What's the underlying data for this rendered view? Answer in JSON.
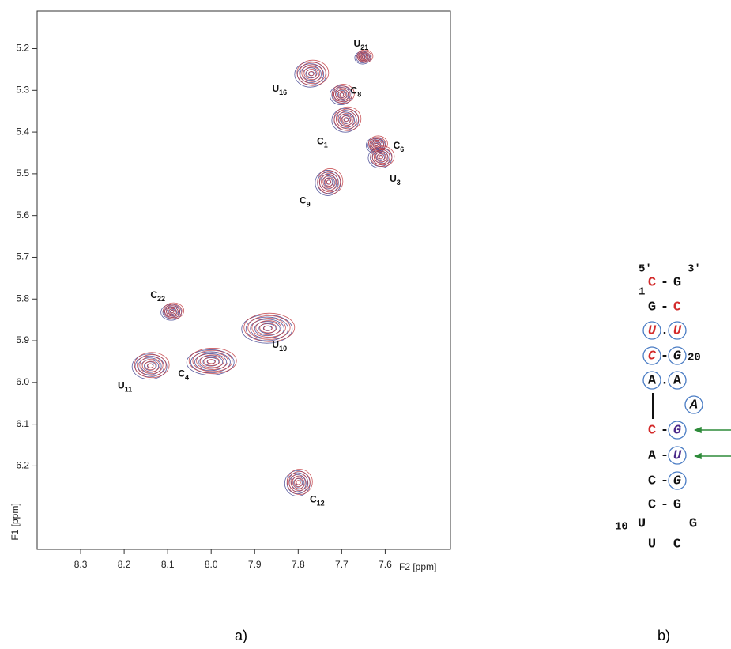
{
  "chart_data": {
    "type": "contour",
    "x_label": "F2 [ppm]",
    "y_label": "F1 [ppm]",
    "panel_label": "a)",
    "xlim": [
      8.4,
      7.45
    ],
    "ylim": [
      5.11,
      6.4
    ],
    "xticks": [
      8.3,
      8.2,
      8.1,
      {
        "value": 8.0,
        "label": "8.0"
      },
      7.9,
      7.8,
      7.7,
      7.6
    ],
    "yticks": [
      5.2,
      5.3,
      5.4,
      5.5,
      5.6,
      5.7,
      5.8,
      5.9,
      {
        "value": 6.0,
        "label": "6.0"
      },
      6.1,
      6.2
    ],
    "contour_colors": [
      "#3d3f8e",
      "#c23b3f"
    ],
    "peaks": [
      {
        "label": "U",
        "sub": "21",
        "x": 7.65,
        "y": 5.22
      },
      {
        "label": "U",
        "sub": "16",
        "x": 7.77,
        "y": 5.26
      },
      {
        "label": "C",
        "sub": "8",
        "x": 7.7,
        "y": 5.31
      },
      {
        "label": "C",
        "sub": "1",
        "x": 7.69,
        "y": 5.37
      },
      {
        "label": "C",
        "sub": "6",
        "x": 7.62,
        "y": 5.43
      },
      {
        "label": "U",
        "sub": "3",
        "x": 7.61,
        "y": 5.46
      },
      {
        "label": "C",
        "sub": "9",
        "x": 7.73,
        "y": 5.52
      },
      {
        "label": "C",
        "sub": "22",
        "x": 8.09,
        "y": 5.83
      },
      {
        "label": "U",
        "sub": "10",
        "x": 7.87,
        "y": 5.87
      },
      {
        "label": "C",
        "sub": "4",
        "x": 8.0,
        "y": 5.95
      },
      {
        "label": "U",
        "sub": "11",
        "x": 8.14,
        "y": 5.96
      },
      {
        "label": "C",
        "sub": "12",
        "x": 7.8,
        "y": 6.24
      }
    ]
  },
  "structure": {
    "panel_label": "b)",
    "labels": [
      "5′",
      "3′",
      "1",
      "20",
      "10"
    ],
    "bonds": [
      "-",
      "-",
      ".",
      "-",
      ".",
      "-",
      "-",
      "-",
      "-"
    ],
    "circle_color": "#4a7cc4",
    "nucleotides": [
      {
        "text": "C",
        "color": "#d32a2a",
        "italic": false,
        "circled": false
      },
      {
        "text": "G",
        "color": "#111111",
        "italic": false,
        "circled": false
      },
      {
        "text": "G",
        "color": "#111111",
        "italic": false,
        "circled": false
      },
      {
        "text": "C",
        "color": "#d32a2a",
        "italic": false,
        "circled": false
      },
      {
        "text": "U",
        "color": "#d32a2a",
        "italic": true,
        "circled": true
      },
      {
        "text": "U",
        "color": "#d32a2a",
        "italic": true,
        "circled": true
      },
      {
        "text": "C",
        "color": "#d32a2a",
        "italic": true,
        "circled": true
      },
      {
        "text": "G",
        "color": "#111111",
        "italic": true,
        "circled": true
      },
      {
        "text": "A",
        "color": "#111111",
        "italic": false,
        "circled": true
      },
      {
        "text": "A",
        "color": "#111111",
        "italic": false,
        "circled": true
      },
      {
        "text": "A",
        "color": "#111111",
        "italic": true,
        "circled": true
      },
      {
        "text": "C",
        "color": "#d32a2a",
        "italic": false,
        "circled": false
      },
      {
        "text": "G",
        "color": "#4b2a8a",
        "italic": true,
        "circled": true
      },
      {
        "text": "A",
        "color": "#111111",
        "italic": false,
        "circled": false
      },
      {
        "text": "U",
        "color": "#4b2a8a",
        "italic": true,
        "circled": true
      },
      {
        "text": "C",
        "color": "#111111",
        "italic": false,
        "circled": false
      },
      {
        "text": "G",
        "color": "#111111",
        "italic": true,
        "circled": true
      },
      {
        "text": "C",
        "color": "#111111",
        "italic": false,
        "circled": false
      },
      {
        "text": "G",
        "color": "#111111",
        "italic": false,
        "circled": false
      },
      {
        "text": "U",
        "color": "#111111",
        "italic": false,
        "circled": false
      },
      {
        "text": "G",
        "color": "#111111",
        "italic": false,
        "circled": false
      },
      {
        "text": "U",
        "color": "#111111",
        "italic": false,
        "circled": false
      },
      {
        "text": "C",
        "color": "#111111",
        "italic": false,
        "circled": false
      }
    ]
  }
}
